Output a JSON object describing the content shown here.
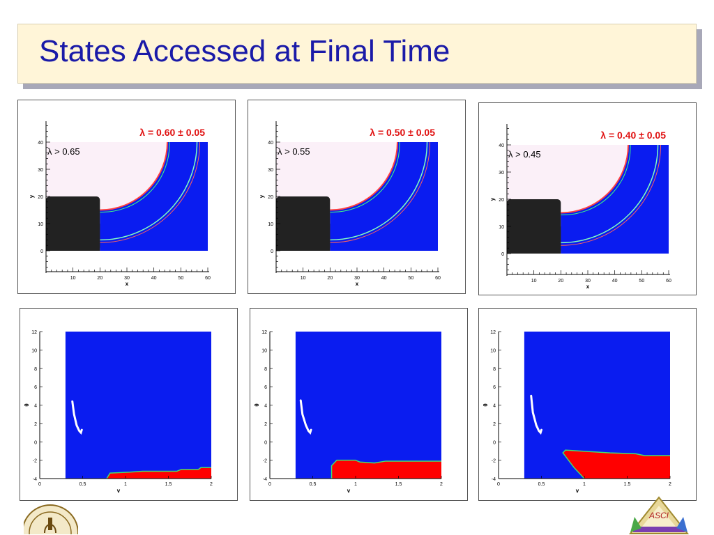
{
  "slide": {
    "title": "States Accessed at Final Time"
  },
  "colors": {
    "title": "#1a1aa8",
    "accessed": "#0a1cf0",
    "initial": "#ff0000",
    "obstacle": "#222222",
    "target": "#fbf0f8"
  },
  "chart_data": [
    {
      "type": "heatmap",
      "title": "λ = 0.60 ± 0.05",
      "annotation": "λ > 0.65",
      "xlabel": "x",
      "ylabel": "y",
      "xlim": [
        0,
        60
      ],
      "ylim": [
        0,
        40
      ],
      "xticks": [
        10,
        20,
        30,
        40,
        50,
        60
      ],
      "yticks": [
        0,
        10,
        20,
        30,
        40
      ],
      "obstacle": {
        "x": [
          0,
          20
        ],
        "y": [
          0,
          20
        ]
      },
      "inner_radius": 25,
      "outer_radius": 40,
      "grid": false
    },
    {
      "type": "heatmap",
      "title": "λ = 0.50 ± 0.05",
      "annotation": "λ > 0.55",
      "xlabel": "x",
      "ylabel": "y",
      "xlim": [
        0,
        60
      ],
      "ylim": [
        0,
        40
      ],
      "xticks": [
        10,
        20,
        30,
        40,
        50,
        60
      ],
      "yticks": [
        0,
        10,
        20,
        30,
        40
      ],
      "obstacle": {
        "x": [
          0,
          20
        ],
        "y": [
          0,
          20
        ]
      },
      "inner_radius": 25,
      "outer_radius": 40,
      "grid": false
    },
    {
      "type": "heatmap",
      "title": "λ = 0.40 ± 0.05",
      "annotation": "λ > 0.45",
      "xlabel": "x",
      "ylabel": "y",
      "xlim": [
        0,
        60
      ],
      "ylim": [
        0,
        40
      ],
      "xticks": [
        10,
        20,
        30,
        40,
        50,
        60
      ],
      "yticks": [
        0,
        10,
        20,
        30,
        40
      ],
      "obstacle": {
        "x": [
          0,
          20
        ],
        "y": [
          0,
          20
        ]
      },
      "inner_radius": 25,
      "outer_radius": 40,
      "grid": false
    },
    {
      "type": "heatmap",
      "xlabel": "v",
      "ylabel": "θ",
      "xlim": [
        0,
        2
      ],
      "ylim": [
        -4,
        12
      ],
      "xticks": [
        0,
        0.5,
        1,
        1.5,
        2
      ],
      "xtick_labels": [
        "0",
        "0.5",
        "1",
        "1.5",
        "2"
      ],
      "yticks": [
        -4,
        -2,
        0,
        2,
        4,
        6,
        8,
        10,
        12
      ],
      "blue_region": {
        "x": [
          0.3,
          2
        ],
        "y": [
          -4,
          12
        ]
      },
      "red_boundary": [
        [
          0.78,
          -4
        ],
        [
          0.82,
          -3.4
        ],
        [
          1.05,
          -3.3
        ],
        [
          1.2,
          -3.2
        ],
        [
          1.6,
          -3.2
        ],
        [
          1.65,
          -3.0
        ],
        [
          1.85,
          -3.0
        ],
        [
          1.88,
          -2.8
        ],
        [
          2,
          -2.8
        ]
      ],
      "trajectory": [
        [
          0.38,
          4.4
        ],
        [
          0.4,
          3.0
        ],
        [
          0.43,
          1.8
        ],
        [
          0.46,
          1.2
        ],
        [
          0.48,
          1.0
        ],
        [
          0.49,
          1.3
        ]
      ]
    },
    {
      "type": "heatmap",
      "xlabel": "v",
      "ylabel": "θ",
      "xlim": [
        0,
        2
      ],
      "ylim": [
        -4,
        12
      ],
      "xticks": [
        0,
        0.5,
        1,
        1.5,
        2
      ],
      "xtick_labels": [
        "0",
        "0.5",
        "1",
        "1.5",
        "2"
      ],
      "yticks": [
        -4,
        -2,
        0,
        2,
        4,
        6,
        8,
        10,
        12
      ],
      "blue_region": {
        "x": [
          0.3,
          2
        ],
        "y": [
          -4,
          12
        ]
      },
      "red_boundary": [
        [
          0.72,
          -4
        ],
        [
          0.72,
          -2.6
        ],
        [
          0.78,
          -2.0
        ],
        [
          1.0,
          -2.0
        ],
        [
          1.05,
          -2.2
        ],
        [
          1.22,
          -2.3
        ],
        [
          1.35,
          -2.1
        ],
        [
          2,
          -2.1
        ]
      ],
      "trajectory": [
        [
          0.36,
          4.5
        ],
        [
          0.38,
          3.0
        ],
        [
          0.42,
          1.8
        ],
        [
          0.45,
          1.2
        ],
        [
          0.47,
          1.0
        ],
        [
          0.48,
          1.3
        ]
      ]
    },
    {
      "type": "heatmap",
      "xlabel": "v",
      "ylabel": "θ",
      "xlim": [
        0,
        2
      ],
      "ylim": [
        -4,
        12
      ],
      "xticks": [
        0,
        0.5,
        1,
        1.5,
        2
      ],
      "xtick_labels": [
        "0",
        "0.5",
        "1",
        "1.5",
        "2"
      ],
      "yticks": [
        -4,
        -2,
        0,
        2,
        4,
        6,
        8,
        10,
        12
      ],
      "blue_region": {
        "x": [
          0.3,
          2
        ],
        "y": [
          -4,
          12
        ]
      },
      "red_boundary": [
        [
          1.0,
          -4
        ],
        [
          0.88,
          -2.8
        ],
        [
          0.75,
          -1.2
        ],
        [
          0.78,
          -0.9
        ],
        [
          1.3,
          -1.2
        ],
        [
          1.6,
          -1.3
        ],
        [
          1.7,
          -1.5
        ],
        [
          2,
          -1.5
        ]
      ],
      "trajectory": [
        [
          0.38,
          5.0
        ],
        [
          0.4,
          3.2
        ],
        [
          0.44,
          1.8
        ],
        [
          0.47,
          1.2
        ],
        [
          0.49,
          1.0
        ],
        [
          0.5,
          1.3
        ]
      ]
    }
  ]
}
